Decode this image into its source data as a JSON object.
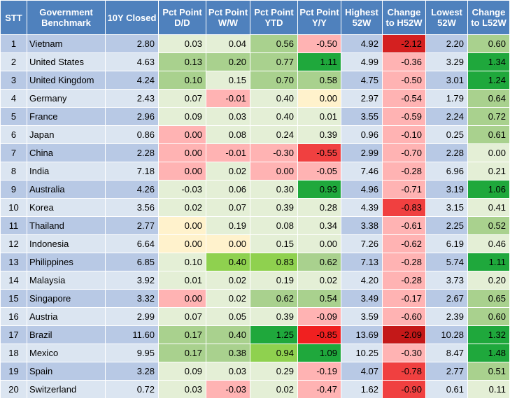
{
  "headers": [
    "STT",
    "Government Benchmark",
    "10Y Closed",
    "Pct Point D/D",
    "Pct Point W/W",
    "Pct Point YTD",
    "Pct Point Y/Y",
    "Highest 52W",
    "Change to H52W",
    "Lowest 52W",
    "Change to L52W"
  ],
  "rows": [
    {
      "stt": "1",
      "name": "Vietnam",
      "closed": "2.80",
      "dd": "0.03",
      "ww": "0.04",
      "ytd": "0.56",
      "yy": "-0.50",
      "h52": "4.92",
      "ch52": "-2.12",
      "l52": "2.20",
      "cl52": "0.60",
      "colors": {
        "dd": "#e4efd6",
        "ww": "#e4efd6",
        "ytd": "#a9d18e",
        "yy": "#ffb3b3",
        "ch52": "#d42020",
        "cl52": "#a9d18e"
      }
    },
    {
      "stt": "2",
      "name": "United States",
      "closed": "4.63",
      "dd": "0.13",
      "ww": "0.20",
      "ytd": "0.77",
      "yy": "1.11",
      "h52": "4.99",
      "ch52": "-0.36",
      "l52": "3.29",
      "cl52": "1.34",
      "colors": {
        "dd": "#a9d18e",
        "ww": "#a9d18e",
        "ytd": "#a9d18e",
        "yy": "#1fa83c",
        "ch52": "#ffb3b3",
        "cl52": "#1fa83c"
      }
    },
    {
      "stt": "3",
      "name": "United Kingdom",
      "closed": "4.24",
      "dd": "0.10",
      "ww": "0.15",
      "ytd": "0.70",
      "yy": "0.58",
      "h52": "4.75",
      "ch52": "-0.50",
      "l52": "3.01",
      "cl52": "1.24",
      "colors": {
        "dd": "#a9d18e",
        "ww": "#e4efd6",
        "ytd": "#a9d18e",
        "yy": "#a9d18e",
        "ch52": "#ffb3b3",
        "cl52": "#1fa83c"
      }
    },
    {
      "stt": "4",
      "name": "Germany",
      "closed": "2.43",
      "dd": "0.07",
      "ww": "-0.01",
      "ytd": "0.40",
      "yy": "0.00",
      "h52": "2.97",
      "ch52": "-0.54",
      "l52": "1.79",
      "cl52": "0.64",
      "colors": {
        "dd": "#e4efd6",
        "ww": "#ffb3b3",
        "ytd": "#e4efd6",
        "yy": "#fff2cc",
        "ch52": "#ffb3b3",
        "cl52": "#a9d18e"
      }
    },
    {
      "stt": "5",
      "name": "France",
      "closed": "2.96",
      "dd": "0.09",
      "ww": "0.03",
      "ytd": "0.40",
      "yy": "0.01",
      "h52": "3.55",
      "ch52": "-0.59",
      "l52": "2.24",
      "cl52": "0.72",
      "colors": {
        "dd": "#e4efd6",
        "ww": "#e4efd6",
        "ytd": "#e4efd6",
        "yy": "#e4efd6",
        "ch52": "#ffb3b3",
        "cl52": "#a9d18e"
      }
    },
    {
      "stt": "6",
      "name": "Japan",
      "closed": "0.86",
      "dd": "0.00",
      "ww": "0.08",
      "ytd": "0.24",
      "yy": "0.39",
      "h52": "0.96",
      "ch52": "-0.10",
      "l52": "0.25",
      "cl52": "0.61",
      "colors": {
        "dd": "#ffb3b3",
        "ww": "#e4efd6",
        "ytd": "#e4efd6",
        "yy": "#e4efd6",
        "ch52": "#ffb3b3",
        "cl52": "#a9d18e"
      }
    },
    {
      "stt": "7",
      "name": "China",
      "closed": "2.28",
      "dd": "0.00",
      "ww": "-0.01",
      "ytd": "-0.30",
      "yy": "-0.55",
      "h52": "2.99",
      "ch52": "-0.70",
      "l52": "2.28",
      "cl52": "0.00",
      "colors": {
        "dd": "#ffb3b3",
        "ww": "#ffb3b3",
        "ytd": "#ffb3b3",
        "yy": "#f04040",
        "ch52": "#ffb3b3",
        "cl52": "#e4efd6"
      }
    },
    {
      "stt": "8",
      "name": "India",
      "closed": "7.18",
      "dd": "0.00",
      "ww": "0.02",
      "ytd": "0.00",
      "yy": "-0.05",
      "h52": "7.46",
      "ch52": "-0.28",
      "l52": "6.96",
      "cl52": "0.21",
      "colors": {
        "dd": "#ffb3b3",
        "ww": "#e4efd6",
        "ytd": "#ffb3b3",
        "yy": "#ffb3b3",
        "ch52": "#ffb3b3",
        "cl52": "#e4efd6"
      }
    },
    {
      "stt": "9",
      "name": "Australia",
      "closed": "4.26",
      "dd": "-0.03",
      "ww": "0.06",
      "ytd": "0.30",
      "yy": "0.93",
      "h52": "4.96",
      "ch52": "-0.71",
      "l52": "3.19",
      "cl52": "1.06",
      "colors": {
        "dd": "#e4efd6",
        "ww": "#e4efd6",
        "ytd": "#e4efd6",
        "yy": "#1fa83c",
        "ch52": "#ffb3b3",
        "cl52": "#1fa83c"
      }
    },
    {
      "stt": "10",
      "name": "Korea",
      "closed": "3.56",
      "dd": "0.02",
      "ww": "0.07",
      "ytd": "0.39",
      "yy": "0.28",
      "h52": "4.39",
      "ch52": "-0.83",
      "l52": "3.15",
      "cl52": "0.41",
      "colors": {
        "dd": "#e4efd6",
        "ww": "#e4efd6",
        "ytd": "#e4efd6",
        "yy": "#e4efd6",
        "ch52": "#f04040",
        "cl52": "#e4efd6"
      }
    },
    {
      "stt": "11",
      "name": "Thailand",
      "closed": "2.77",
      "dd": "0.00",
      "ww": "0.19",
      "ytd": "0.08",
      "yy": "0.34",
      "h52": "3.38",
      "ch52": "-0.61",
      "l52": "2.25",
      "cl52": "0.52",
      "colors": {
        "dd": "#fff2cc",
        "ww": "#e4efd6",
        "ytd": "#e4efd6",
        "yy": "#e4efd6",
        "ch52": "#ffb3b3",
        "cl52": "#a9d18e"
      }
    },
    {
      "stt": "12",
      "name": "Indonesia",
      "closed": "6.64",
      "dd": "0.00",
      "ww": "0.00",
      "ytd": "0.15",
      "yy": "0.00",
      "h52": "7.26",
      "ch52": "-0.62",
      "l52": "6.19",
      "cl52": "0.46",
      "colors": {
        "dd": "#fff2cc",
        "ww": "#fff2cc",
        "ytd": "#e4efd6",
        "yy": "#e4efd6",
        "ch52": "#ffb3b3",
        "cl52": "#e4efd6"
      }
    },
    {
      "stt": "13",
      "name": "Philippines",
      "closed": "6.85",
      "dd": "0.10",
      "ww": "0.40",
      "ytd": "0.83",
      "yy": "0.62",
      "h52": "7.13",
      "ch52": "-0.28",
      "l52": "5.74",
      "cl52": "1.11",
      "colors": {
        "dd": "#e4efd6",
        "ww": "#8fd14f",
        "ytd": "#8fd14f",
        "yy": "#a9d18e",
        "ch52": "#ffb3b3",
        "cl52": "#1fa83c"
      }
    },
    {
      "stt": "14",
      "name": "Malaysia",
      "closed": "3.92",
      "dd": "0.01",
      "ww": "0.02",
      "ytd": "0.19",
      "yy": "0.02",
      "h52": "4.20",
      "ch52": "-0.28",
      "l52": "3.73",
      "cl52": "0.20",
      "colors": {
        "dd": "#e4efd6",
        "ww": "#e4efd6",
        "ytd": "#e4efd6",
        "yy": "#e4efd6",
        "ch52": "#ffb3b3",
        "cl52": "#e4efd6"
      }
    },
    {
      "stt": "15",
      "name": "Singapore",
      "closed": "3.32",
      "dd": "0.00",
      "ww": "0.02",
      "ytd": "0.62",
      "yy": "0.54",
      "h52": "3.49",
      "ch52": "-0.17",
      "l52": "2.67",
      "cl52": "0.65",
      "colors": {
        "dd": "#ffb3b3",
        "ww": "#e4efd6",
        "ytd": "#a9d18e",
        "yy": "#a9d18e",
        "ch52": "#ffb3b3",
        "cl52": "#a9d18e"
      }
    },
    {
      "stt": "16",
      "name": "Austria",
      "closed": "2.99",
      "dd": "0.07",
      "ww": "0.05",
      "ytd": "0.39",
      "yy": "-0.09",
      "h52": "3.59",
      "ch52": "-0.60",
      "l52": "2.39",
      "cl52": "0.60",
      "colors": {
        "dd": "#e4efd6",
        "ww": "#e4efd6",
        "ytd": "#e4efd6",
        "yy": "#ffb3b3",
        "ch52": "#ffb3b3",
        "cl52": "#a9d18e"
      }
    },
    {
      "stt": "17",
      "name": "Brazil",
      "closed": "11.60",
      "dd": "0.17",
      "ww": "0.40",
      "ytd": "1.25",
      "yy": "-0.85",
      "h52": "13.69",
      "ch52": "-2.09",
      "l52": "10.28",
      "cl52": "1.32",
      "colors": {
        "dd": "#a9d18e",
        "ww": "#a9d18e",
        "ytd": "#1fa83c",
        "yy": "#f02020",
        "ch52": "#c41818",
        "cl52": "#1fa83c"
      }
    },
    {
      "stt": "18",
      "name": "Mexico",
      "closed": "9.95",
      "dd": "0.17",
      "ww": "0.38",
      "ytd": "0.94",
      "yy": "1.09",
      "h52": "10.25",
      "ch52": "-0.30",
      "l52": "8.47",
      "cl52": "1.48",
      "colors": {
        "dd": "#a9d18e",
        "ww": "#a9d18e",
        "ytd": "#8fd14f",
        "yy": "#1fa83c",
        "ch52": "#ffb3b3",
        "cl52": "#1fa83c"
      }
    },
    {
      "stt": "19",
      "name": "Spain",
      "closed": "3.28",
      "dd": "0.09",
      "ww": "0.03",
      "ytd": "0.29",
      "yy": "-0.19",
      "h52": "4.07",
      "ch52": "-0.78",
      "l52": "2.77",
      "cl52": "0.51",
      "colors": {
        "dd": "#e4efd6",
        "ww": "#e4efd6",
        "ytd": "#e4efd6",
        "yy": "#ffb3b3",
        "ch52": "#f04040",
        "cl52": "#a9d18e"
      }
    },
    {
      "stt": "20",
      "name": "Switzerland",
      "closed": "0.72",
      "dd": "0.03",
      "ww": "-0.03",
      "ytd": "0.02",
      "yy": "-0.47",
      "h52": "1.62",
      "ch52": "-0.90",
      "l52": "0.61",
      "cl52": "0.11",
      "colors": {
        "dd": "#e4efd6",
        "ww": "#ffb3b3",
        "ytd": "#e4efd6",
        "yy": "#ffb3b3",
        "ch52": "#f04040",
        "cl52": "#e4efd6"
      }
    }
  ]
}
